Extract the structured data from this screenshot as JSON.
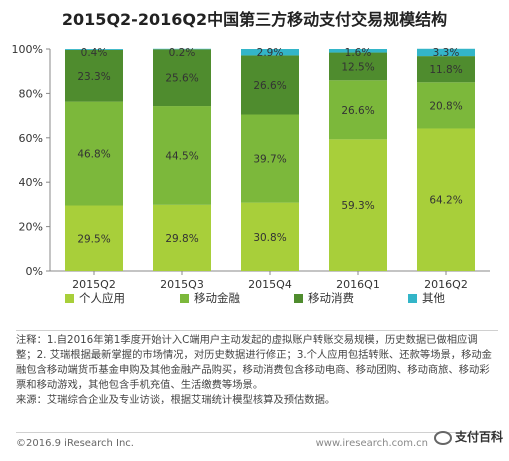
{
  "title": "2015Q2-2016Q2中国第三方移动支付交易规模结构",
  "chart_data": {
    "type": "bar",
    "stacked": true,
    "categories": [
      "2015Q2",
      "2015Q3",
      "2015Q4",
      "2016Q1",
      "2016Q2"
    ],
    "series": [
      {
        "name": "个人应用",
        "color": "#a8cf3a",
        "values": [
          29.5,
          29.8,
          30.8,
          59.3,
          64.2
        ]
      },
      {
        "name": "移动金融",
        "color": "#7cb83b",
        "values": [
          46.8,
          44.5,
          39.7,
          26.6,
          20.8
        ]
      },
      {
        "name": "移动消费",
        "color": "#4f8c2e",
        "values": [
          23.3,
          25.6,
          26.6,
          12.5,
          11.8
        ]
      },
      {
        "name": "其他",
        "color": "#33b5c8",
        "values": [
          0.4,
          0.2,
          2.9,
          1.6,
          3.3
        ]
      }
    ],
    "value_labels": [
      [
        "29.5%",
        "46.8%",
        "23.3%",
        "0.4%"
      ],
      [
        "29.8%",
        "44.5%",
        "25.6%",
        "0.2%"
      ],
      [
        "30.8%",
        "39.7%",
        "26.6%",
        "2.9%"
      ],
      [
        "59.3%",
        "26.6%",
        "12.5%",
        "1.6%"
      ],
      [
        "64.2%",
        "20.8%",
        "11.8%",
        "3.3%"
      ]
    ],
    "yticks": [
      "0%",
      "20%",
      "40%",
      "60%",
      "80%",
      "100%"
    ],
    "ylim": [
      0,
      100
    ],
    "legend_position": "bottom-left"
  },
  "notes": [
    "注释：1.自2016年第1季度开始计入C端用户主动发起的虚拟账户转账交易规模，历史数据已做相应调整；2. 艾瑞根据最新掌握的市场情况，对历史数据进行修正；3.个人应用包括转账、还款等场景，移动金融包含移动端货币基金申购及其他金融产品购买，移动消费包含移动电商、移动团购、移动商旅、移动彩票和移动游戏，其他包含手机充值、生活缴费等场景。",
    "来源：艾瑞综合企业及专业访谈，根据艾瑞统计模型核算及预估数据。"
  ],
  "footer": {
    "copyright": "©2016.9 iResearch Inc.",
    "url": "www.iresearch.com.cn",
    "watermark": "支付百科"
  }
}
